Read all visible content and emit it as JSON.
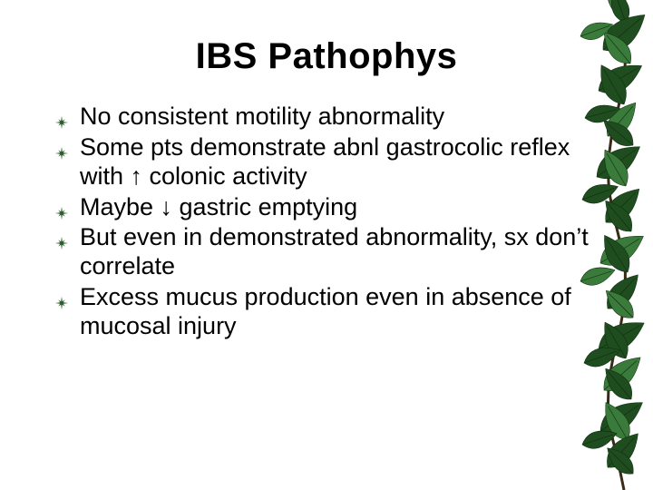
{
  "slide": {
    "title": "IBS Pathophys",
    "title_fontsize": 40,
    "title_color": "#000000",
    "body_fontsize": 27,
    "body_color": "#000000",
    "line_height": 1.18,
    "bullets": [
      "No consistent motility abnormality",
      "Some pts demonstrate abnl gastrocolic reflex with ↑ colonic activity",
      "Maybe ↓ gastric emptying",
      "But even in demonstrated abnormality, sx don’t correlate",
      "Excess mucus production even in absence of mucosal injury"
    ],
    "bullet_icon_color": "#285a28",
    "background_color": "#ffffff",
    "vine": {
      "leaf_fill": "#1f4d1f",
      "leaf_fill_light": "#3a7a3a",
      "stem_color": "#3a2a18"
    }
  }
}
